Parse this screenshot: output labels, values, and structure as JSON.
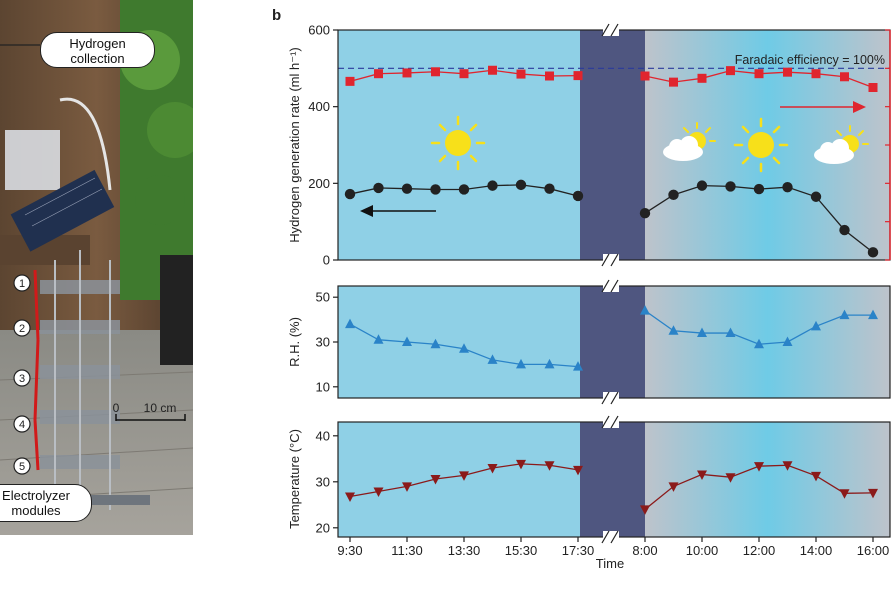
{
  "panel_label": "b",
  "photo": {
    "callouts": [
      "Hydrogen collection",
      "Electrolyzer modules"
    ],
    "module_numbers": [
      "1",
      "2",
      "3",
      "4",
      "5"
    ],
    "scale_labels": [
      "0",
      "10 cm"
    ]
  },
  "colors": {
    "day_bg": "#8fd0e6",
    "night_bg": "#4f5680",
    "evening_bg": "#b9bfca",
    "h2": "#222222",
    "fe": "#e0252e",
    "rh": "#2a83c8",
    "temp": "#8b1a1a",
    "sun": "#f7e01a"
  },
  "chart_data": [
    {
      "type": "line",
      "name": "hydrogen",
      "xlabel": "Time",
      "ylabel": "Hydrogen generation rate (ml h⁻¹)",
      "ylim": [
        0,
        600
      ],
      "yticks": [
        0,
        200,
        400,
        600
      ],
      "reference_line": {
        "value": 500,
        "label": "Faradaic efficiency = 100%"
      },
      "series": [
        {
          "name": "H2 rate day 1",
          "x": [
            9.5,
            10.5,
            11.5,
            12.5,
            13.5,
            14.5,
            15.5,
            16.5,
            17.5
          ],
          "values": [
            172,
            188,
            186,
            184,
            184,
            194,
            196,
            186,
            167
          ]
        },
        {
          "name": "H2 rate day 2",
          "x": [
            8,
            9,
            10,
            11,
            12,
            13,
            14,
            15,
            16
          ],
          "values": [
            122,
            170,
            194,
            192,
            185,
            190,
            165,
            78,
            20
          ]
        },
        {
          "name": "Faradaic efficiency day 1",
          "axis": "right",
          "x": [
            9.5,
            10.5,
            11.5,
            12.5,
            13.5,
            14.5,
            15.5,
            16.5,
            17.5
          ],
          "values": [
            466,
            486,
            488,
            491,
            486,
            495,
            485,
            480,
            481
          ]
        },
        {
          "name": "Faradaic efficiency day 2",
          "axis": "right",
          "x": [
            8,
            9,
            10,
            11,
            12,
            13,
            14,
            15,
            16
          ],
          "values": [
            480,
            464,
            474,
            494,
            486,
            490,
            486,
            478,
            450
          ]
        }
      ]
    },
    {
      "type": "line",
      "name": "humidity",
      "ylabel": "R.H. (%)",
      "ylim": [
        5,
        55
      ],
      "yticks": [
        10,
        30,
        50
      ],
      "series": [
        {
          "name": "R.H. day 1",
          "x": [
            9.5,
            10.5,
            11.5,
            12.5,
            13.5,
            14.5,
            15.5,
            16.5,
            17.5
          ],
          "values": [
            38,
            31,
            30,
            29,
            27,
            22,
            20,
            20,
            19
          ]
        },
        {
          "name": "R.H. day 2",
          "x": [
            8,
            9,
            10,
            11,
            12,
            13,
            14,
            15,
            16
          ],
          "values": [
            44,
            35,
            34,
            34,
            29,
            30,
            37,
            42,
            42
          ]
        }
      ]
    },
    {
      "type": "line",
      "name": "temperature",
      "ylabel": "Temperature (°C)",
      "ylim": [
        18,
        43
      ],
      "yticks": [
        20,
        30,
        40
      ],
      "xticks_day1": [
        {
          "x": 9.5,
          "label": "9:30"
        },
        {
          "x": 11.5,
          "label": "11:30"
        },
        {
          "x": 13.5,
          "label": "13:30"
        },
        {
          "x": 15.5,
          "label": "15:30"
        },
        {
          "x": 17.5,
          "label": "17:30"
        }
      ],
      "xticks_day2": [
        {
          "x": 8,
          "label": "8:00"
        },
        {
          "x": 10,
          "label": "10:00"
        },
        {
          "x": 12,
          "label": "12:00"
        },
        {
          "x": 14,
          "label": "14:00"
        },
        {
          "x": 16,
          "label": "16:00"
        }
      ],
      "series": [
        {
          "name": "Temperature day 1",
          "x": [
            9.5,
            10.5,
            11.5,
            12.5,
            13.5,
            14.5,
            15.5,
            16.5,
            17.5
          ],
          "values": [
            26.8,
            27.9,
            29.0,
            30.6,
            31.4,
            33.0,
            33.9,
            33.6,
            32.6
          ]
        },
        {
          "name": "Temperature day 2",
          "x": [
            8,
            9,
            10,
            11,
            12,
            13,
            14,
            15,
            16
          ],
          "values": [
            24.0,
            29.0,
            31.6,
            31.0,
            33.4,
            33.6,
            31.3,
            27.5,
            27.6
          ]
        }
      ]
    }
  ]
}
